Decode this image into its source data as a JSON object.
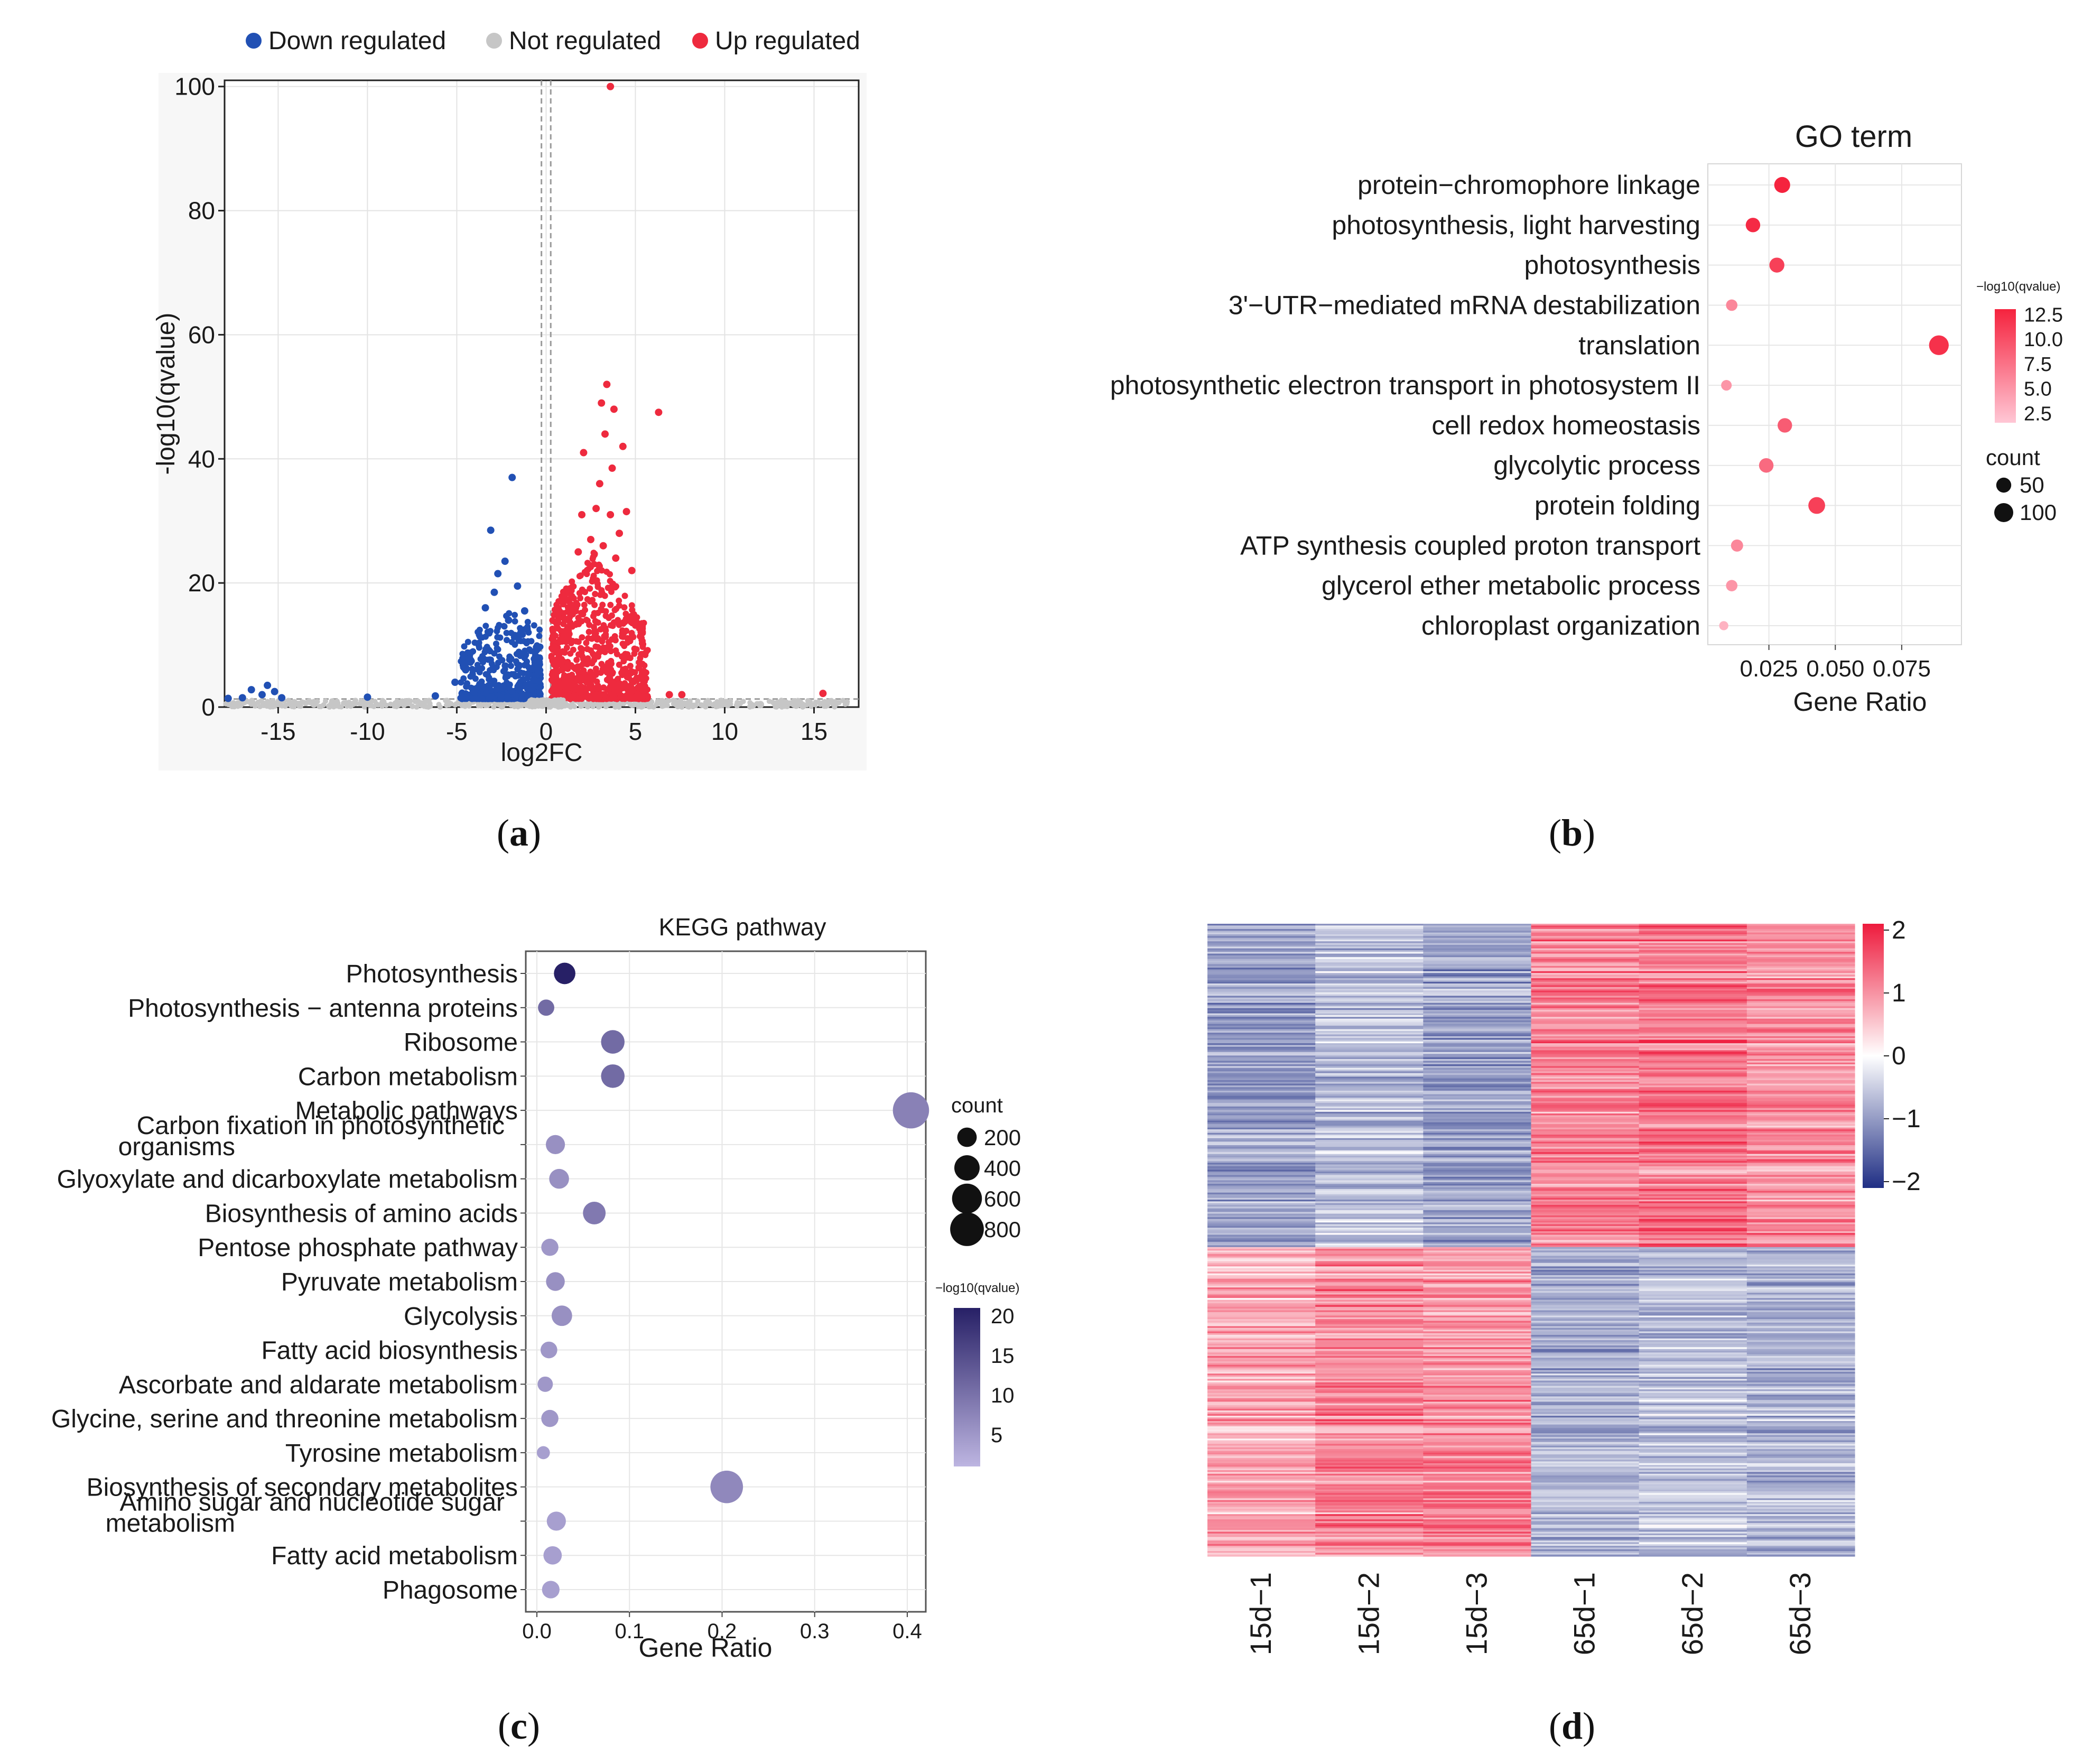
{
  "panel_labels": [
    "a",
    "b",
    "c",
    "d"
  ],
  "chart_data": [
    {
      "type": "scatter",
      "panel": "a",
      "title": "",
      "xlabel": "log2FC",
      "ylabel": "-log10(qvalue)",
      "xlim": [
        -18,
        17.5
      ],
      "ylim": [
        0,
        101
      ],
      "xticks": [
        -15,
        -10,
        -5,
        0,
        5,
        10,
        15
      ],
      "yticks": [
        0,
        20,
        40,
        60,
        80,
        100
      ],
      "legend": [
        {
          "label": "Down regulated",
          "color": "#2150b4"
        },
        {
          "label": "Not regulated",
          "color": "#c6c6c6"
        },
        {
          "label": "Up regulated",
          "color": "#ee2a3e"
        }
      ],
      "threshold_lines": {
        "x": [
          -0.26,
          0.26
        ],
        "y": [
          1.3
        ]
      },
      "series": [
        {
          "name": "Down regulated",
          "color": "#2150b4",
          "points": [
            [
              -1.9,
              37
            ],
            [
              -3.1,
              28.5
            ],
            [
              -2.3,
              23.5
            ],
            [
              -2.7,
              21.5
            ],
            [
              -1.6,
              19.5
            ],
            [
              -2.9,
              18.5
            ],
            [
              -3.4,
              16
            ],
            [
              -1.2,
              15.5
            ],
            [
              -2.1,
              14
            ],
            [
              -15.6,
              3.5
            ],
            [
              -15.2,
              2.5
            ],
            [
              -15.9,
              2
            ],
            [
              -14.8,
              1.5
            ],
            [
              -16.5,
              2.8
            ],
            [
              -17,
              1.5
            ],
            [
              -17.8,
              1.4
            ],
            [
              -10,
              1.6
            ],
            [
              -6.2,
              1.8
            ],
            [
              -4.5,
              6
            ],
            [
              -5.1,
              4
            ]
          ]
        },
        {
          "name": "Up regulated",
          "color": "#ee2a3e",
          "points": [
            [
              3.6,
              100
            ],
            [
              3.4,
              52
            ],
            [
              3.1,
              49
            ],
            [
              3.8,
              48
            ],
            [
              6.3,
              47.5
            ],
            [
              3.3,
              44
            ],
            [
              4.3,
              42
            ],
            [
              3.7,
              38.5
            ],
            [
              2.1,
              41
            ],
            [
              3.0,
              36
            ],
            [
              4.5,
              31.5
            ],
            [
              2.8,
              32
            ],
            [
              2.0,
              31
            ],
            [
              3.6,
              31
            ],
            [
              4.1,
              28
            ],
            [
              2.5,
              27
            ],
            [
              3.2,
              26
            ],
            [
              1.8,
              25
            ],
            [
              4.8,
              22
            ],
            [
              3.9,
              24
            ],
            [
              15.5,
              2.2
            ],
            [
              6.9,
              2
            ],
            [
              7.6,
              2
            ]
          ]
        },
        {
          "name": "Not regulated",
          "color": "#c6c6c6",
          "points": [
            [
              -0.2,
              0.3
            ],
            [
              0.1,
              0.5
            ],
            [
              -8,
              0.7
            ],
            [
              9,
              0.6
            ],
            [
              -12,
              0.4
            ],
            [
              -13,
              0.5
            ],
            [
              12,
              0.4
            ],
            [
              14,
              0.3
            ],
            [
              -7,
              0.5
            ],
            [
              8,
              0.6
            ]
          ]
        }
      ]
    },
    {
      "type": "scatter",
      "panel": "b",
      "title": "GO term",
      "xlabel": "Gene Ratio",
      "ylabel": "",
      "xlim": [
        0.002,
        0.0975
      ],
      "xticks": [
        0.025,
        0.05,
        0.075
      ],
      "xtick_labels": [
        "0.025",
        "0.050",
        "0.075"
      ],
      "categories": [
        "protein−chromophore linkage",
        "photosynthesis, light harvesting",
        "photosynthesis",
        "3'−UTR−mediated mRNA destabilization",
        "translation",
        "photosynthetic electron transport in photosystem II",
        "cell redox homeostasis",
        "glycolytic process",
        "protein folding",
        "ATP synthesis coupled proton transport",
        "glycerol ether metabolic process",
        "chloroplast organization"
      ],
      "x": [
        0.03,
        0.019,
        0.028,
        0.011,
        0.089,
        0.009,
        0.031,
        0.024,
        0.043,
        0.013,
        0.011,
        0.008
      ],
      "count": [
        60,
        45,
        50,
        20,
        110,
        15,
        45,
        45,
        70,
        25,
        20,
        8
      ],
      "neg_log10_qvalue": [
        13,
        12.5,
        11,
        6,
        12,
        5,
        9,
        8,
        11,
        6,
        5,
        3
      ],
      "color_legend": {
        "title": "−log10(qvalue)",
        "range": [
          1.5,
          13
        ],
        "ticks": [
          "12.5",
          "10.0",
          "7.5",
          "5.0",
          "2.5"
        ],
        "colors": [
          "#ffc7d5",
          "#f5233e"
        ]
      },
      "size_legend": {
        "title": "count",
        "values": [
          "50",
          "100"
        ]
      }
    },
    {
      "type": "scatter",
      "panel": "c",
      "title": "KEGG pathway",
      "xlabel": "Gene Ratio",
      "ylabel": "",
      "xlim": [
        -0.012,
        0.42
      ],
      "xticks": [
        0.0,
        0.1,
        0.2,
        0.3,
        0.4
      ],
      "xtick_labels": [
        "0.0",
        "0.1",
        "0.2",
        "0.3",
        "0.4"
      ],
      "categories": [
        {
          "lines": [
            "Photosynthesis"
          ]
        },
        {
          "lines": [
            "Photosynthesis − antenna proteins"
          ]
        },
        {
          "lines": [
            "Ribosome"
          ]
        },
        {
          "lines": [
            "Carbon metabolism"
          ]
        },
        {
          "lines": [
            "Metabolic pathways"
          ]
        },
        {
          "lines": [
            "Carbon fixation in photosynthetic",
            "organisms"
          ]
        },
        {
          "lines": [
            "Glyoxylate and dicarboxylate metabolism"
          ]
        },
        {
          "lines": [
            "Biosynthesis of amino acids"
          ]
        },
        {
          "lines": [
            "Pentose phosphate pathway"
          ]
        },
        {
          "lines": [
            "Pyruvate metabolism"
          ]
        },
        {
          "lines": [
            "Glycolysis"
          ]
        },
        {
          "lines": [
            "Fatty acid biosynthesis"
          ]
        },
        {
          "lines": [
            "Ascorbate and aldarate metabolism"
          ]
        },
        {
          "lines": [
            "Glycine, serine and threonine metabolism"
          ]
        },
        {
          "lines": [
            "Tyrosine metabolism"
          ]
        },
        {
          "lines": [
            "Biosynthesis of secondary metabolites"
          ]
        },
        {
          "lines": [
            "Amino sugar and nucleotide sugar",
            "metabolism"
          ]
        },
        {
          "lines": [
            "Fatty acid metabolism"
          ]
        },
        {
          "lines": [
            "Phagosome"
          ]
        }
      ],
      "x": [
        0.03,
        0.01,
        0.082,
        0.082,
        0.404,
        0.02,
        0.024,
        0.062,
        0.014,
        0.02,
        0.027,
        0.013,
        0.009,
        0.014,
        0.007,
        0.205,
        0.021,
        0.017,
        0.015
      ],
      "count": [
        260,
        120,
        330,
        330,
        950,
        190,
        210,
        300,
        140,
        180,
        230,
        130,
        100,
        140,
        60,
        740,
        190,
        170,
        150
      ],
      "neg_log10_qvalue": [
        21,
        11,
        11,
        11,
        8,
        6,
        6,
        9,
        5,
        6,
        6,
        5,
        5,
        5,
        4,
        7,
        4,
        4,
        4
      ],
      "size_legend": {
        "title": "count",
        "values": [
          "200",
          "400",
          "600",
          "800"
        ]
      },
      "color_legend": {
        "title": "−log10(qvalue)",
        "range": [
          1,
          21
        ],
        "ticks": [
          "20",
          "15",
          "10",
          "5"
        ],
        "colors": [
          "#bdb5e1",
          "#272066"
        ]
      }
    },
    {
      "type": "heatmap",
      "panel": "d",
      "title": "",
      "columns": [
        "15d−1",
        "15d−2",
        "15d−3",
        "65d−1",
        "65d−2",
        "65d−3"
      ],
      "scale": {
        "min": -2,
        "max": 2,
        "ticks": [
          "2",
          "1",
          "0",
          "−1",
          "−2"
        ],
        "colors": [
          "#1f2e84",
          "#ffffff",
          "#ee1b3d"
        ]
      },
      "row_count": 360,
      "cluster_split_fraction": 0.51,
      "cluster_means": [
        [
          -0.9,
          -0.6,
          -0.9,
          1.1,
          1.2,
          1.0
        ],
        [
          0.75,
          1.05,
          1.0,
          -0.75,
          -0.6,
          -0.75
        ]
      ]
    }
  ]
}
